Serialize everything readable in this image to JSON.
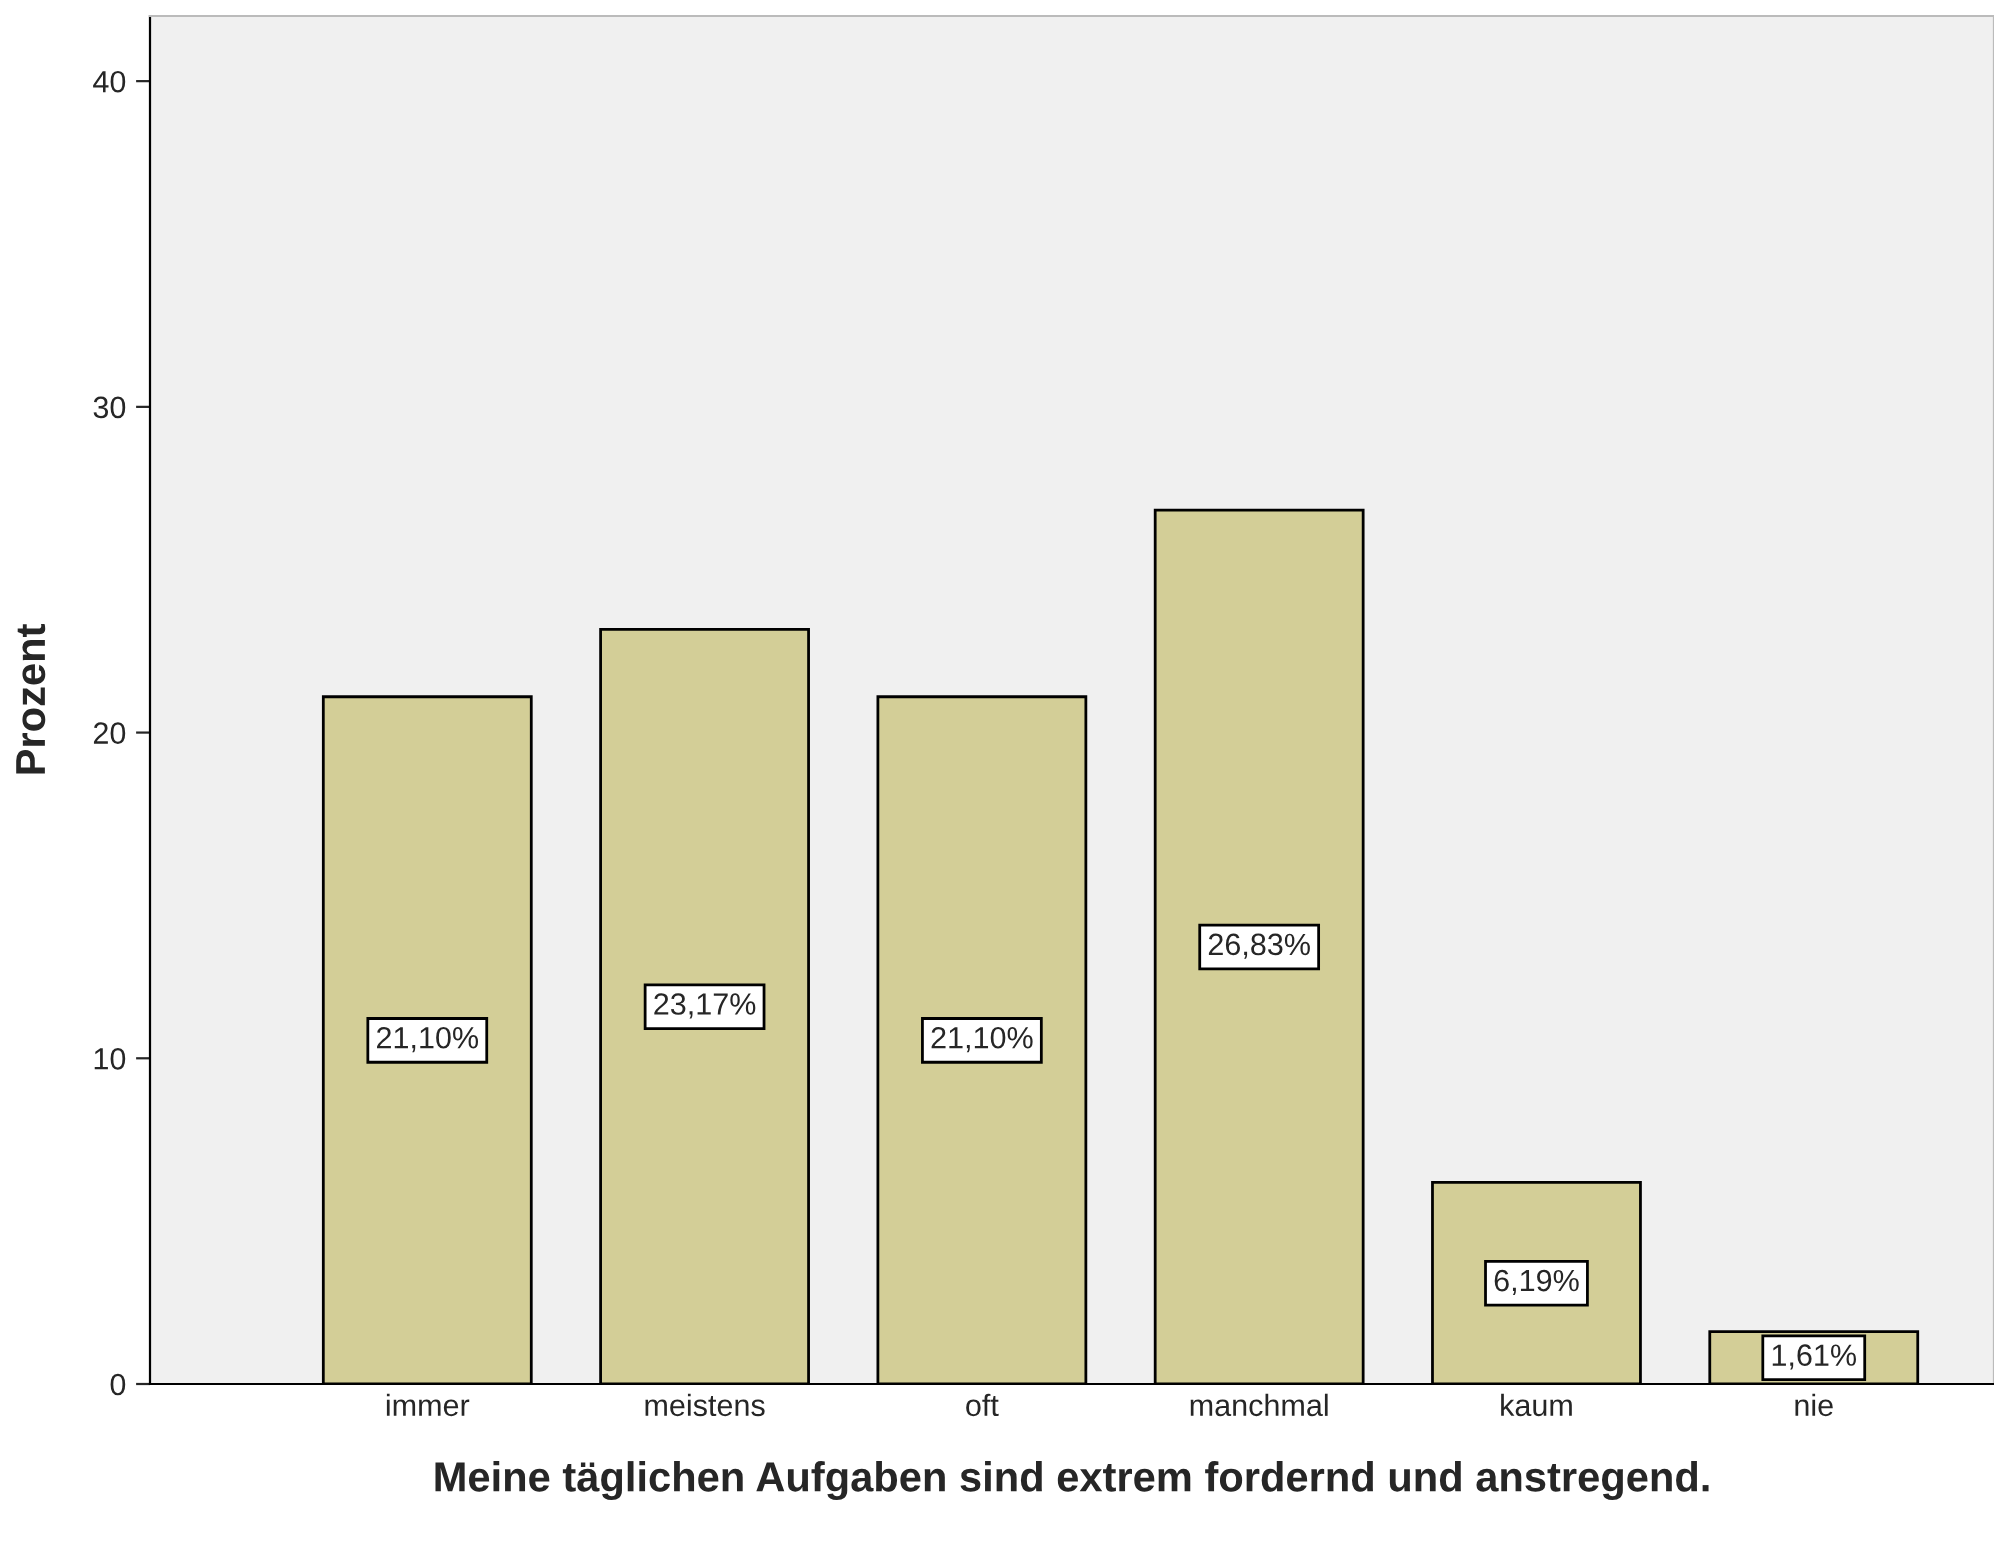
{
  "chart_data": {
    "type": "bar",
    "xlabel": "Meine täglichen Aufgaben sind extrem fordernd und anstregend.",
    "ylabel": "Prozent",
    "categories": [
      "immer",
      "meistens",
      "oft",
      "manchmal",
      "kaum",
      "nie"
    ],
    "values": [
      21.1,
      23.17,
      21.1,
      26.83,
      6.19,
      1.61
    ],
    "value_labels": [
      "21,10%",
      "23,17%",
      "21,10%",
      "26,83%",
      "6,19%",
      "1,61%"
    ],
    "color": "#d3ce97",
    "ylim": [
      0,
      42
    ],
    "yticks": [
      0,
      10,
      20,
      30,
      40
    ],
    "grid": false,
    "legend": false
  }
}
